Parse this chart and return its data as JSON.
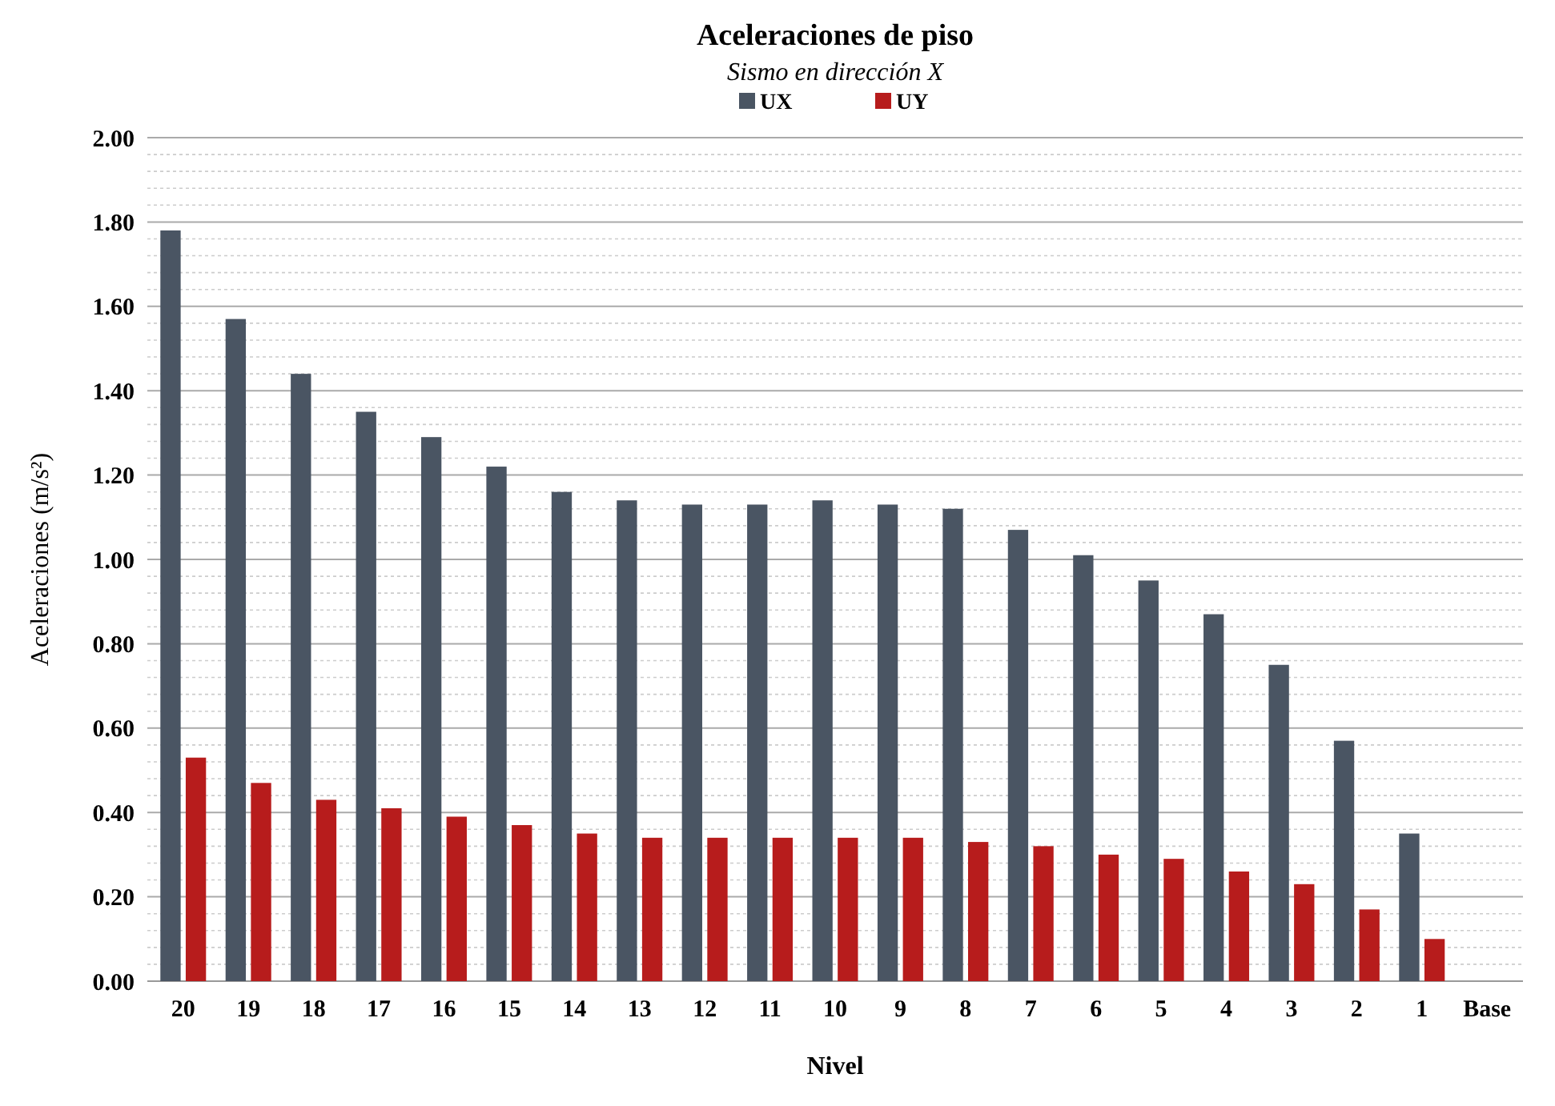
{
  "chart_data": {
    "type": "bar",
    "title": "Aceleraciones de piso",
    "subtitle": "Sismo en dirección X",
    "xlabel": "Nivel",
    "ylabel": "Aceleraciones (m/s²)",
    "categories": [
      "20",
      "19",
      "18",
      "17",
      "16",
      "15",
      "14",
      "13",
      "12",
      "11",
      "10",
      "9",
      "8",
      "7",
      "6",
      "5",
      "4",
      "3",
      "2",
      "1",
      "Base"
    ],
    "series": [
      {
        "name": "UX",
        "color": "#4a5563",
        "values": [
          1.78,
          1.57,
          1.44,
          1.35,
          1.29,
          1.22,
          1.16,
          1.14,
          1.13,
          1.13,
          1.14,
          1.13,
          1.12,
          1.07,
          1.01,
          0.95,
          0.87,
          0.75,
          0.57,
          0.35,
          null
        ]
      },
      {
        "name": "UY",
        "color": "#b71c1c",
        "values": [
          0.53,
          0.47,
          0.43,
          0.41,
          0.39,
          0.37,
          0.35,
          0.34,
          0.34,
          0.34,
          0.34,
          0.34,
          0.33,
          0.32,
          0.3,
          0.29,
          0.26,
          0.23,
          0.17,
          0.1,
          null
        ]
      }
    ],
    "ylim": [
      0,
      2
    ],
    "yticks": [
      {
        "value": 0,
        "label": "0.00"
      },
      {
        "value": 0.2,
        "label": "0.20"
      },
      {
        "value": 0.4,
        "label": "0.40"
      },
      {
        "value": 0.6,
        "label": "0.60"
      },
      {
        "value": 0.8,
        "label": "0.80"
      },
      {
        "value": 1,
        "label": "1.00"
      },
      {
        "value": 1.2,
        "label": "1.20"
      },
      {
        "value": 1.4,
        "label": "1.40"
      },
      {
        "value": 1.6,
        "label": "1.60"
      },
      {
        "value": 1.8,
        "label": "1.80"
      },
      {
        "value": 2,
        "label": "2.00"
      }
    ],
    "grid": "y",
    "legend": "top"
  }
}
